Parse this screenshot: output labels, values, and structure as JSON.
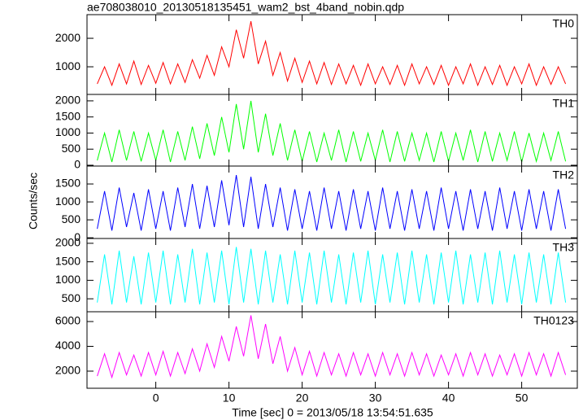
{
  "chart_data": [
    {
      "type": "line",
      "title": "ae708038010_20130518135451_wam2_bst_4band_nobin.qdp",
      "x": [
        -8,
        -7,
        -6,
        -5,
        -4,
        -3,
        -2,
        -1,
        0,
        1,
        2,
        3,
        4,
        5,
        6,
        7,
        8,
        9,
        10,
        11,
        12,
        13,
        14,
        15,
        16,
        17,
        18,
        19,
        20,
        21,
        22,
        23,
        24,
        25,
        26,
        27,
        28,
        29,
        30,
        31,
        32,
        33,
        34,
        35,
        36,
        37,
        38,
        39,
        40,
        41,
        42,
        43,
        44,
        45,
        46,
        47,
        48,
        49,
        50,
        51,
        52,
        53,
        54,
        55,
        56
      ],
      "series": [
        {
          "name": "TH0",
          "color": "#ff0000",
          "values": [
            400,
            1000,
            350,
            1100,
            400,
            1200,
            380,
            1050,
            420,
            1150,
            400,
            1100,
            450,
            1250,
            600,
            1400,
            700,
            1700,
            1000,
            2300,
            1300,
            2600,
            1100,
            1900,
            700,
            1500,
            500,
            1300,
            450,
            1200,
            400,
            1150,
            380,
            1100,
            400,
            1050,
            350,
            1100,
            400,
            1000,
            380,
            1050,
            350,
            1100,
            400,
            1000,
            380,
            1050,
            350,
            1000,
            400,
            1100,
            350,
            1000,
            380,
            1050,
            350,
            1000,
            400,
            1100,
            350,
            1000,
            380,
            1000,
            400
          ]
        }
      ],
      "ylim": [
        30,
        2830
      ],
      "yticks": [
        1000,
        2000
      ]
    },
    {
      "type": "line",
      "x": [
        -8,
        -7,
        -6,
        -5,
        -4,
        -3,
        -2,
        -1,
        0,
        1,
        2,
        3,
        4,
        5,
        6,
        7,
        8,
        9,
        10,
        11,
        12,
        13,
        14,
        15,
        16,
        17,
        18,
        19,
        20,
        21,
        22,
        23,
        24,
        25,
        26,
        27,
        28,
        29,
        30,
        31,
        32,
        33,
        34,
        35,
        36,
        37,
        38,
        39,
        40,
        41,
        42,
        43,
        44,
        45,
        46,
        47,
        48,
        49,
        50,
        51,
        52,
        53,
        54,
        55,
        56
      ],
      "series": [
        {
          "name": "TH1",
          "color": "#00ff00",
          "values": [
            150,
            1000,
            100,
            1100,
            150,
            1050,
            120,
            1000,
            150,
            1100,
            100,
            1050,
            150,
            1200,
            200,
            1300,
            300,
            1500,
            400,
            1900,
            500,
            2000,
            400,
            1600,
            300,
            1300,
            150,
            1100,
            120,
            1050,
            100,
            1000,
            150,
            1100,
            100,
            1050,
            120,
            1000,
            150,
            1100,
            100,
            1050,
            120,
            1000,
            150,
            1000,
            100,
            1050,
            120,
            1000,
            150,
            1100,
            100,
            1050,
            120,
            1000,
            150,
            1050,
            100,
            1000,
            120,
            1000,
            150,
            1050,
            120
          ]
        }
      ],
      "ylim": [
        -25,
        2200
      ],
      "yticks": [
        0,
        500,
        1000,
        1500,
        2000
      ]
    },
    {
      "type": "line",
      "y_label": "Counts/sec",
      "x": [
        -8,
        -7,
        -6,
        -5,
        -4,
        -3,
        -2,
        -1,
        0,
        1,
        2,
        3,
        4,
        5,
        6,
        7,
        8,
        9,
        10,
        11,
        12,
        13,
        14,
        15,
        16,
        17,
        18,
        19,
        20,
        21,
        22,
        23,
        24,
        25,
        26,
        27,
        28,
        29,
        30,
        31,
        32,
        33,
        34,
        35,
        36,
        37,
        38,
        39,
        40,
        41,
        42,
        43,
        44,
        45,
        46,
        47,
        48,
        49,
        50,
        51,
        52,
        53,
        54,
        55,
        56
      ],
      "series": [
        {
          "name": "TH2",
          "color": "#0000ff",
          "values": [
            250,
            1300,
            200,
            1400,
            300,
            1250,
            200,
            1350,
            250,
            1300,
            200,
            1400,
            300,
            1500,
            250,
            1450,
            300,
            1600,
            350,
            1750,
            300,
            1700,
            250,
            1500,
            300,
            1400,
            200,
            1350,
            250,
            1300,
            200,
            1400,
            250,
            1300,
            200,
            1350,
            250,
            1300,
            200,
            1400,
            250,
            1300,
            200,
            1350,
            250,
            1300,
            200,
            1400,
            250,
            1300,
            200,
            1350,
            250,
            1300,
            200,
            1400,
            250,
            1300,
            200,
            1350,
            250,
            1300,
            200,
            1350,
            250
          ]
        }
      ],
      "ylim": [
        -20,
        2000
      ],
      "yticks": [
        0,
        500,
        1000,
        1500
      ]
    },
    {
      "type": "line",
      "x": [
        -8,
        -7,
        -6,
        -5,
        -4,
        -3,
        -2,
        -1,
        0,
        1,
        2,
        3,
        4,
        5,
        6,
        7,
        8,
        9,
        10,
        11,
        12,
        13,
        14,
        15,
        16,
        17,
        18,
        19,
        20,
        21,
        22,
        23,
        24,
        25,
        26,
        27,
        28,
        29,
        30,
        31,
        32,
        33,
        34,
        35,
        36,
        37,
        38,
        39,
        40,
        41,
        42,
        43,
        44,
        45,
        46,
        47,
        48,
        49,
        50,
        51,
        52,
        53,
        54,
        55,
        56
      ],
      "series": [
        {
          "name": "TH3",
          "color": "#00ffff",
          "values": [
            400,
            1700,
            350,
            1800,
            400,
            1650,
            350,
            1750,
            400,
            1800,
            350,
            1700,
            400,
            1850,
            350,
            1750,
            400,
            1800,
            350,
            1900,
            400,
            1850,
            350,
            1800,
            400,
            1700,
            350,
            1800,
            400,
            1750,
            350,
            1800,
            400,
            1700,
            350,
            1750,
            400,
            1800,
            350,
            1700,
            400,
            1750,
            350,
            1800,
            400,
            1700,
            350,
            1750,
            400,
            1800,
            350,
            1700,
            400,
            1750,
            350,
            1800,
            400,
            1700,
            350,
            1750,
            400,
            1700,
            350,
            1750,
            400
          ]
        }
      ],
      "ylim": [
        150,
        2130
      ],
      "yticks": [
        500,
        1000,
        1500,
        2000
      ]
    },
    {
      "type": "line",
      "x_label": "Time [sec] 0 = 2013/05/18 13:54:51.635",
      "x": [
        -8,
        -7,
        -6,
        -5,
        -4,
        -3,
        -2,
        -1,
        0,
        1,
        2,
        3,
        4,
        5,
        6,
        7,
        8,
        9,
        10,
        11,
        12,
        13,
        14,
        15,
        16,
        17,
        18,
        19,
        20,
        21,
        22,
        23,
        24,
        25,
        26,
        27,
        28,
        29,
        30,
        31,
        32,
        33,
        34,
        35,
        36,
        37,
        38,
        39,
        40,
        41,
        42,
        43,
        44,
        45,
        46,
        47,
        48,
        49,
        50,
        51,
        52,
        53,
        54,
        55,
        56
      ],
      "series": [
        {
          "name": "TH0123",
          "color": "#ff00ff",
          "values": [
            1600,
            3400,
            1500,
            3500,
            1700,
            3300,
            1600,
            3500,
            1700,
            3600,
            1600,
            3500,
            1800,
            3800,
            2000,
            4200,
            2300,
            4800,
            2800,
            5600,
            3200,
            6500,
            3000,
            5800,
            2600,
            4800,
            2000,
            3900,
            1700,
            3600,
            1600,
            3500,
            1700,
            3400,
            1600,
            3500,
            1700,
            3400,
            1600,
            3500,
            1700,
            3400,
            1600,
            3500,
            1700,
            3400,
            1600,
            3300,
            1700,
            3400,
            1600,
            3500,
            1700,
            3400,
            1600,
            3300,
            1700,
            3400,
            1600,
            3500,
            1700,
            3400,
            1600,
            3500,
            1700
          ]
        }
      ],
      "ylim": [
        620,
        6790
      ],
      "yticks": [
        2000,
        4000,
        6000
      ],
      "xlim": [
        -9.4,
        57.6
      ],
      "xticks": [
        0,
        10,
        20,
        30,
        40,
        50
      ]
    }
  ]
}
